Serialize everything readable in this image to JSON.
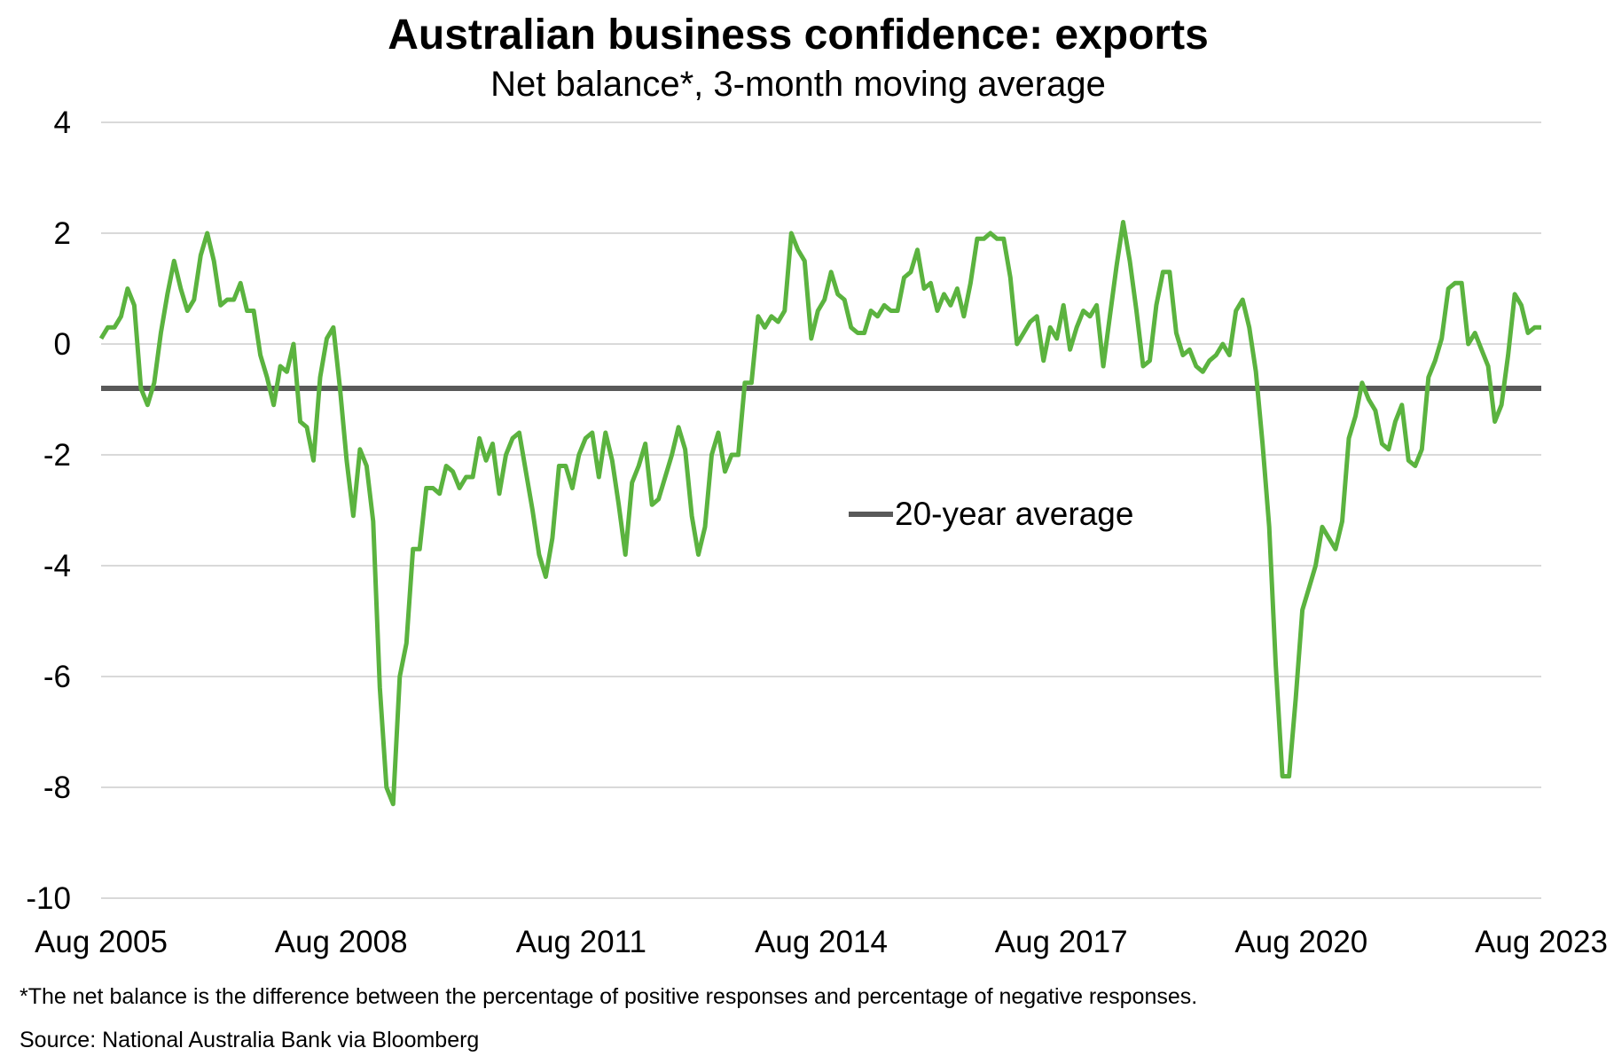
{
  "chart_data": {
    "type": "line",
    "title": "Australian business confidence: exports",
    "subtitle": "Net balance*, 3-month moving average",
    "footnote": "*The net balance is the difference between the percentage of positive responses and percentage of negative responses.",
    "source": "Source: National Australia Bank via Bloomberg",
    "ylim": [
      -10,
      4
    ],
    "yticks": [
      "4",
      "2",
      "0",
      "-2",
      "-4",
      "-6",
      "-8",
      "-10"
    ],
    "ytick_values": [
      4,
      2,
      0,
      -2,
      -4,
      -6,
      -8,
      -10
    ],
    "xlim": [
      "Aug 2005",
      "Aug 2023"
    ],
    "xticks": [
      "Aug 2005",
      "Aug 2008",
      "Aug 2011",
      "Aug 2014",
      "Aug 2017",
      "Aug 2020",
      "Aug 2023"
    ],
    "grid": true,
    "legend": {
      "label": "20-year average",
      "placement": "center"
    },
    "series": [
      {
        "frequency": "monthly",
        "start": "Aug 2005",
        "color": "#5bb33f",
        "values": [
          0.1,
          0.3,
          0.3,
          0.5,
          1.0,
          0.7,
          -0.8,
          -1.1,
          -0.7,
          0.2,
          0.9,
          1.5,
          1.0,
          0.6,
          0.8,
          1.6,
          2.0,
          1.5,
          0.7,
          0.8,
          0.8,
          1.1,
          0.6,
          0.6,
          -0.2,
          -0.6,
          -1.1,
          -0.4,
          -0.5,
          0.0,
          -1.4,
          -1.5,
          -2.1,
          -0.6,
          0.1,
          0.3,
          -0.8,
          -2.1,
          -3.1,
          -1.9,
          -2.2,
          -3.2,
          -6.2,
          -8.0,
          -8.3,
          -6.0,
          -5.4,
          -3.7,
          -3.7,
          -2.6,
          -2.6,
          -2.7,
          -2.2,
          -2.3,
          -2.6,
          -2.4,
          -2.4,
          -1.7,
          -2.1,
          -1.8,
          -2.7,
          -2.0,
          -1.7,
          -1.6,
          -2.3,
          -3.0,
          -3.8,
          -4.2,
          -3.5,
          -2.2,
          -2.2,
          -2.6,
          -2.0,
          -1.7,
          -1.6,
          -2.4,
          -1.6,
          -2.1,
          -2.9,
          -3.8,
          -2.5,
          -2.2,
          -1.8,
          -2.9,
          -2.8,
          -2.4,
          -2.0,
          -1.5,
          -1.9,
          -3.1,
          -3.8,
          -3.3,
          -2.0,
          -1.6,
          -2.3,
          -2.0,
          -2.0,
          -0.7,
          -0.7,
          0.5,
          0.3,
          0.5,
          0.4,
          0.6,
          2.0,
          1.7,
          1.5,
          0.1,
          0.6,
          0.8,
          1.3,
          0.9,
          0.8,
          0.3,
          0.2,
          0.2,
          0.6,
          0.5,
          0.7,
          0.6,
          0.6,
          1.2,
          1.3,
          1.7,
          1.0,
          1.1,
          0.6,
          0.9,
          0.7,
          1.0,
          0.5,
          1.1,
          1.9,
          1.9,
          2.0,
          1.9,
          1.9,
          1.2,
          0.0,
          0.2,
          0.4,
          0.5,
          -0.3,
          0.3,
          0.1,
          0.7,
          -0.1,
          0.3,
          0.6,
          0.5,
          0.7,
          -0.4,
          0.5,
          1.4,
          2.2,
          1.5,
          0.6,
          -0.4,
          -0.3,
          0.7,
          1.3,
          1.3,
          0.2,
          -0.2,
          -0.1,
          -0.4,
          -0.5,
          -0.3,
          -0.2,
          0.0,
          -0.2,
          0.6,
          0.8,
          0.3,
          -0.5,
          -1.8,
          -3.3,
          -5.8,
          -7.8,
          -7.8,
          -6.4,
          -4.8,
          -4.4,
          -4.0,
          -3.3,
          -3.5,
          -3.7,
          -3.2,
          -1.7,
          -1.3,
          -0.7,
          -1.0,
          -1.2,
          -1.8,
          -1.9,
          -1.4,
          -1.1,
          -2.1,
          -2.2,
          -1.9,
          -0.6,
          -0.3,
          0.1,
          1.0,
          1.1,
          1.1,
          0.0,
          0.2,
          -0.1,
          -0.4,
          -1.4,
          -1.1,
          -0.2,
          0.9,
          0.7,
          0.2,
          0.3,
          0.3
        ]
      },
      {
        "name": "20-year average",
        "color": "#595959",
        "constant": -0.8
      }
    ]
  }
}
